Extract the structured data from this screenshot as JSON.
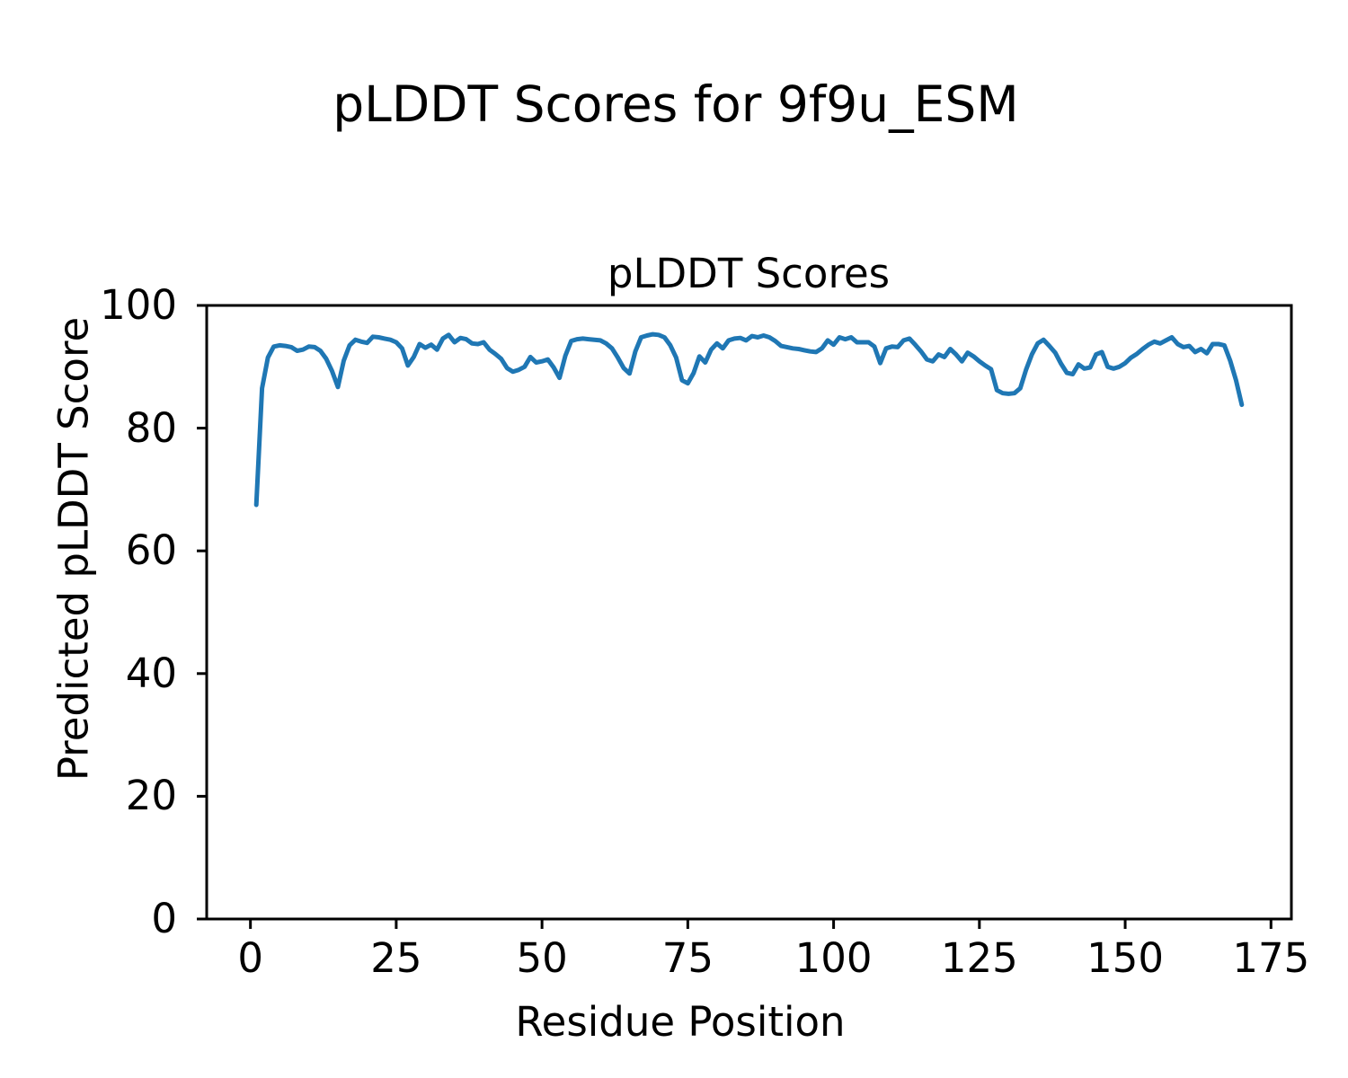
{
  "figure": {
    "suptitle": "pLDDT Scores for 9f9u_ESM"
  },
  "chart_data": {
    "type": "line",
    "title": "pLDDT Scores",
    "xlabel": "Residue Position",
    "ylabel": "Predicted pLDDT Score",
    "xlim": [
      -7.5,
      178.5
    ],
    "ylim": [
      0,
      100
    ],
    "xticks": [
      0,
      25,
      50,
      75,
      100,
      125,
      150,
      175
    ],
    "yticks": [
      0,
      20,
      40,
      60,
      80,
      100
    ],
    "grid": false,
    "legend_position": "none",
    "line_color": "#1f77b4",
    "axis_color": "#000000",
    "series": [
      {
        "name": "pLDDT",
        "x_start": 1,
        "x_step": 1,
        "values": [
          67.5,
          86.5,
          91.5,
          93.3,
          93.5,
          93.4,
          93.2,
          92.6,
          92.8,
          93.3,
          93.2,
          92.6,
          91.3,
          89.3,
          86.7,
          91.0,
          93.5,
          94.4,
          94.1,
          93.9,
          94.9,
          94.8,
          94.6,
          94.4,
          94.0,
          93.0,
          90.2,
          91.6,
          93.7,
          93.1,
          93.6,
          92.8,
          94.6,
          95.2,
          94.0,
          94.7,
          94.5,
          93.8,
          93.7,
          94.0,
          92.8,
          92.1,
          91.3,
          89.8,
          89.2,
          89.5,
          90.0,
          91.6,
          90.7,
          90.9,
          91.2,
          89.9,
          88.2,
          91.8,
          94.2,
          94.5,
          94.6,
          94.5,
          94.4,
          94.3,
          93.8,
          93.0,
          91.5,
          89.8,
          88.9,
          92.5,
          94.8,
          95.1,
          95.3,
          95.2,
          94.8,
          93.5,
          91.5,
          87.8,
          87.3,
          89.0,
          91.7,
          90.7,
          92.8,
          93.8,
          93.0,
          94.3,
          94.6,
          94.7,
          94.3,
          95.0,
          94.8,
          95.1,
          94.8,
          94.2,
          93.4,
          93.2,
          93.0,
          92.9,
          92.7,
          92.5,
          92.4,
          93.0,
          94.3,
          93.6,
          94.8,
          94.5,
          94.8,
          94.0,
          94.0,
          94.0,
          93.3,
          90.6,
          93.0,
          93.3,
          93.2,
          94.3,
          94.6,
          93.6,
          92.5,
          91.2,
          90.9,
          92.0,
          91.6,
          92.9,
          92.0,
          90.9,
          92.3,
          91.7,
          90.9,
          90.2,
          89.6,
          86.2,
          85.7,
          85.6,
          85.7,
          86.5,
          89.5,
          92.0,
          93.8,
          94.4,
          93.4,
          92.3,
          90.5,
          89.0,
          88.8,
          90.4,
          89.7,
          89.9,
          92.0,
          92.4,
          90.0,
          89.7,
          90.0,
          90.6,
          91.5,
          92.1,
          92.9,
          93.6,
          94.1,
          93.8,
          94.3,
          94.8,
          93.7,
          93.2,
          93.4,
          92.4,
          92.9,
          92.2,
          93.7,
          93.7,
          93.5,
          91.0,
          87.8,
          83.8
        ]
      }
    ]
  }
}
